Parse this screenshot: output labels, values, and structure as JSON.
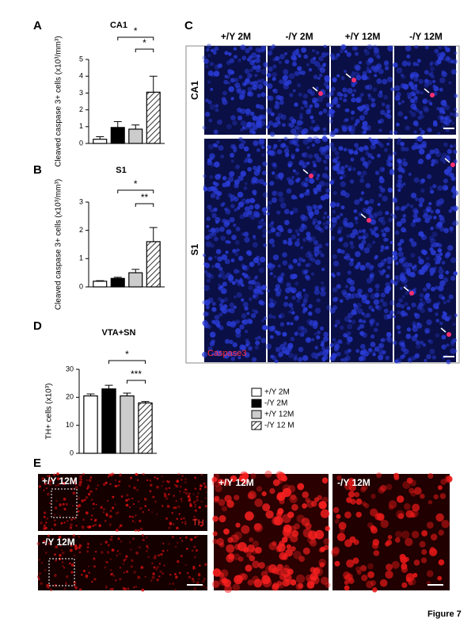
{
  "chart_data": [
    {
      "type": "bar",
      "panel": "A",
      "title": "CA1",
      "y_label": "Cleaved caspase 3+ cells (x10³/mm³)",
      "categories": [
        null,
        null,
        null,
        null
      ],
      "values": [
        0.25,
        0.95,
        0.85,
        3.05
      ],
      "errors": [
        0.15,
        0.35,
        0.25,
        0.95
      ],
      "colors": [
        "#ffffff",
        "#000000",
        "#cccccc",
        "#ffffff"
      ],
      "hatched": [
        false,
        false,
        false,
        true
      ],
      "ylim": [
        0,
        5
      ],
      "yticks": [
        0,
        1,
        2,
        3,
        4,
        5
      ],
      "annotations": [
        "*",
        "*"
      ]
    },
    {
      "type": "bar",
      "panel": "B",
      "title": "S1",
      "y_label": "Cleaved caspase 3+ cells (x10³/mm³)",
      "categories": [
        null,
        null,
        null,
        null
      ],
      "values": [
        0.2,
        0.3,
        0.5,
        1.6
      ],
      "errors": [
        0.02,
        0.04,
        0.12,
        0.5
      ],
      "colors": [
        "#ffffff",
        "#000000",
        "#cccccc",
        "#ffffff"
      ],
      "hatched": [
        false,
        false,
        false,
        true
      ],
      "ylim": [
        0,
        3
      ],
      "yticks": [
        0,
        1,
        2,
        3
      ],
      "annotations": [
        "**",
        "*"
      ]
    },
    {
      "type": "bar",
      "panel": "D",
      "title": "VTA+SN",
      "y_label": "TH+ cells (x10³)",
      "categories": [
        null,
        null,
        null,
        null
      ],
      "values": [
        20.5,
        23,
        20.5,
        18
      ],
      "errors": [
        0.7,
        1.3,
        1.0,
        0.5
      ],
      "colors": [
        "#ffffff",
        "#000000",
        "#cccccc",
        "#ffffff"
      ],
      "hatched": [
        false,
        false,
        false,
        true
      ],
      "ylim": [
        0,
        30
      ],
      "yticks": [
        0,
        10,
        20,
        30
      ],
      "annotations": [
        "***",
        "*"
      ]
    }
  ],
  "legend": [
    "+/Y 2M",
    "-/Y 2M",
    "+/Y 12M",
    "-/Y 12 M"
  ],
  "panel_c": {
    "label": "C",
    "columns": [
      "+/Y 2M",
      "-/Y 2M",
      "+/Y 12M",
      "-/Y 12M"
    ],
    "rows": [
      "CA1",
      "S1"
    ],
    "stain": "Caspase3"
  },
  "panel_e": {
    "label": "E",
    "top_left": "+/Y 12M",
    "bottom_left": "-/Y 12M",
    "stain": "TH",
    "middle": "+/Y 12M",
    "right": "-/Y 12M"
  },
  "figure_label": "Figure 7"
}
